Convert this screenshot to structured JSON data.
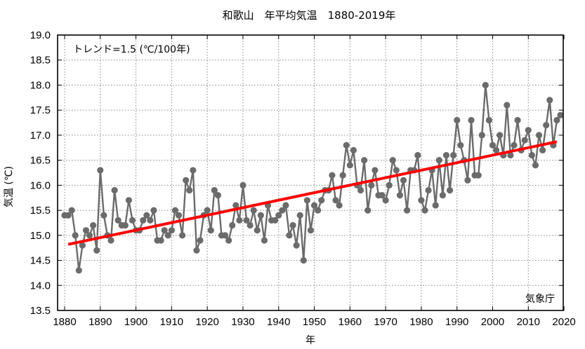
{
  "chart_data": {
    "type": "line",
    "title": "和歌山　年平均気温　1880-2019年",
    "xlabel": "年",
    "ylabel": "気温 (℃)",
    "xlim": [
      1878,
      2020
    ],
    "ylim": [
      13.5,
      19.0
    ],
    "x_ticks": [
      1880,
      1890,
      1900,
      1910,
      1920,
      1930,
      1940,
      1950,
      1960,
      1970,
      1980,
      1990,
      2000,
      2010,
      2020
    ],
    "y_ticks": [
      "13.5",
      "14.0",
      "14.5",
      "15.0",
      "15.5",
      "16.0",
      "16.5",
      "17.0",
      "17.5",
      "18.0",
      "18.5",
      "19.0"
    ],
    "grid": true,
    "colors": {
      "series": "#6b6b6b",
      "trend": "#ff0000",
      "grid": "#888888",
      "frame": "#000000"
    },
    "annotations": {
      "trend_label": "トレンド=1.5 (℃/100年)",
      "trend_label_position": "top-left",
      "source": "気象庁",
      "source_position": "bottom-right"
    },
    "series": [
      {
        "name": "年平均気温",
        "style": "line-with-markers",
        "x_start": 1880,
        "values": [
          15.4,
          15.4,
          15.5,
          15.0,
          14.3,
          14.8,
          15.1,
          15.0,
          15.2,
          14.7,
          16.3,
          15.4,
          15.0,
          14.9,
          15.9,
          15.3,
          15.2,
          15.2,
          15.7,
          15.3,
          15.1,
          15.1,
          15.3,
          15.4,
          15.3,
          15.5,
          14.9,
          14.9,
          15.1,
          15.0,
          15.1,
          15.5,
          15.4,
          15.0,
          16.1,
          15.9,
          16.3,
          14.7,
          14.9,
          15.4,
          15.5,
          15.1,
          15.9,
          15.8,
          15.0,
          15.0,
          14.9,
          15.2,
          15.6,
          15.3,
          16.0,
          15.3,
          15.2,
          15.5,
          15.1,
          15.4,
          14.9,
          15.6,
          15.3,
          15.3,
          15.4,
          15.5,
          15.6,
          15.0,
          15.2,
          14.8,
          15.4,
          14.5,
          15.7,
          15.1,
          15.6,
          15.5,
          15.7,
          15.9,
          15.9,
          16.2,
          15.7,
          15.6,
          16.2,
          16.8,
          16.4,
          16.7,
          16.0,
          15.9,
          16.5,
          15.5,
          16.0,
          16.3,
          15.8,
          15.8,
          15.7,
          16.0,
          16.5,
          16.3,
          15.8,
          16.1,
          15.5,
          16.3,
          16.3,
          16.6,
          15.7,
          15.5,
          15.9,
          16.3,
          15.6,
          16.5,
          15.8,
          16.6,
          15.9,
          16.6,
          17.3,
          16.8,
          16.5,
          16.1,
          17.3,
          16.2,
          16.2,
          17.0,
          18.0,
          17.3,
          16.8,
          16.7,
          17.0,
          16.6,
          17.6,
          16.6,
          16.8,
          17.3,
          16.7,
          16.9,
          17.1,
          16.6,
          16.4,
          17.0,
          16.7,
          17.2,
          17.7,
          16.8,
          17.3,
          17.4
        ]
      },
      {
        "name": "トレンド",
        "style": "line",
        "x": [
          1881,
          2018
        ],
        "values": [
          14.82,
          16.87
        ]
      }
    ]
  }
}
